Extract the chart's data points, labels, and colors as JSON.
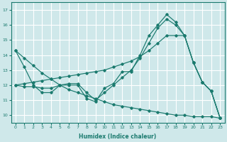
{
  "bg_color": "#cfe8ea",
  "grid_color": "#ffffff",
  "line_color": "#1a7a6e",
  "xlabel": "Humidex (Indice chaleur)",
  "xlim": [
    -0.5,
    23.5
  ],
  "ylim": [
    9.5,
    17.5
  ],
  "yticks": [
    10,
    11,
    12,
    13,
    14,
    15,
    16,
    17
  ],
  "xticks": [
    0,
    1,
    2,
    3,
    4,
    5,
    6,
    7,
    8,
    9,
    10,
    11,
    12,
    13,
    14,
    15,
    16,
    17,
    18,
    19,
    20,
    21,
    22,
    23
  ],
  "series": [
    {
      "x": [
        0,
        1,
        2,
        3,
        4,
        5,
        6,
        7,
        8,
        9,
        10,
        11,
        12,
        13,
        14,
        15,
        16,
        17,
        18,
        19,
        20,
        21,
        22,
        23
      ],
      "y": [
        14.3,
        13.2,
        12.0,
        11.5,
        11.5,
        12.0,
        12.0,
        12.0,
        11.1,
        10.9,
        11.8,
        12.1,
        12.9,
        12.9,
        14.0,
        15.3,
        16.0,
        16.7,
        16.2,
        15.3,
        13.5,
        12.2,
        11.6,
        9.8
      ]
    },
    {
      "x": [
        0,
        1,
        2,
        3,
        4,
        5,
        6,
        7,
        8,
        9,
        10,
        11,
        12,
        13,
        14,
        15,
        16,
        17,
        18,
        19,
        20,
        21,
        22,
        23
      ],
      "y": [
        12.0,
        12.1,
        12.2,
        12.3,
        12.4,
        12.5,
        12.6,
        12.7,
        12.8,
        12.9,
        13.0,
        13.2,
        13.4,
        13.6,
        13.9,
        14.3,
        14.8,
        15.3,
        15.3,
        15.3,
        13.5,
        12.2,
        11.6,
        9.8
      ]
    },
    {
      "x": [
        0,
        1,
        2,
        3,
        4,
        5,
        6,
        7,
        8,
        9,
        10,
        11,
        12,
        13,
        14,
        15,
        16,
        17,
        18,
        19,
        20,
        21,
        22,
        23
      ],
      "y": [
        14.3,
        13.8,
        13.3,
        12.8,
        12.4,
        12.0,
        11.7,
        11.5,
        11.3,
        11.1,
        10.9,
        10.7,
        10.6,
        10.5,
        10.4,
        10.3,
        10.2,
        10.1,
        10.0,
        10.0,
        9.9,
        9.9,
        9.9,
        9.8
      ]
    },
    {
      "x": [
        0,
        1,
        2,
        3,
        4,
        5,
        6,
        7,
        8,
        9,
        10,
        11,
        12,
        13,
        14,
        15,
        16,
        17,
        18,
        19,
        20,
        21,
        22,
        23
      ],
      "y": [
        12.0,
        11.9,
        11.9,
        11.8,
        11.8,
        12.0,
        12.1,
        12.1,
        11.5,
        11.0,
        11.5,
        12.0,
        12.5,
        13.0,
        13.8,
        14.8,
        15.8,
        16.4,
        16.0,
        15.3,
        13.5,
        12.2,
        11.6,
        9.8
      ]
    }
  ]
}
